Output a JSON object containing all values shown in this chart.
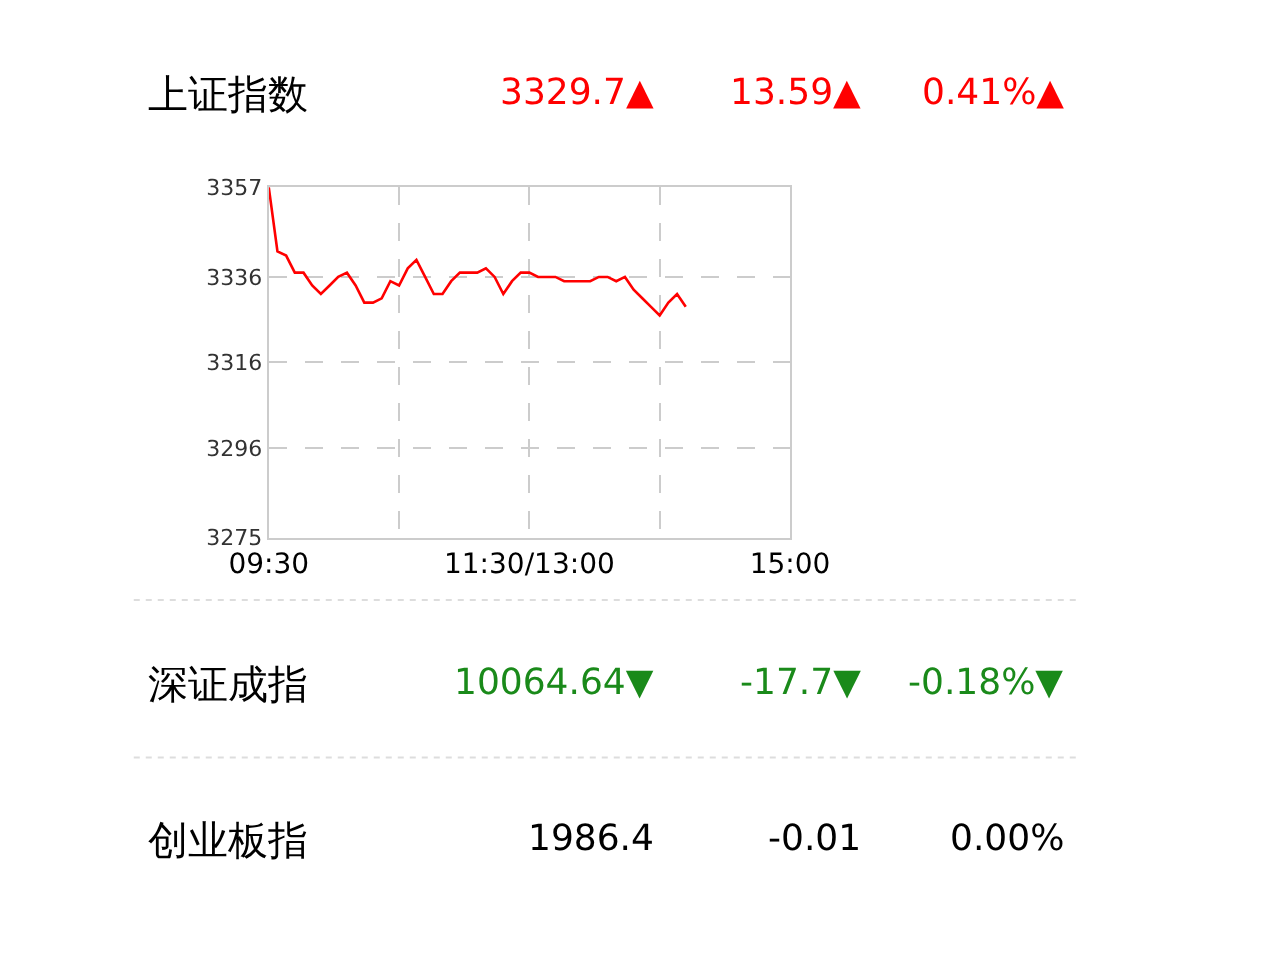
{
  "chart_data": [
    {
      "type": "line",
      "color": "#ff0000",
      "categories": [
        "09:30",
        null,
        null,
        null,
        null,
        null,
        null,
        null,
        null,
        null,
        null,
        null,
        null,
        null,
        null,
        null,
        null,
        null,
        null,
        null,
        null,
        null,
        null,
        null,
        null,
        null,
        null,
        null,
        null,
        null,
        "11:30/13:00",
        null,
        null,
        null,
        null,
        null,
        null,
        null,
        null,
        null,
        null,
        null,
        null,
        null,
        null,
        null,
        null,
        null,
        null,
        null,
        null,
        null,
        null,
        null,
        null,
        null,
        null,
        null,
        null,
        null,
        "15:00"
      ],
      "values": [
        3357,
        3342,
        3341,
        3337,
        3337,
        3334,
        3332,
        3334,
        3336,
        3337,
        3334,
        3330,
        3330,
        3331,
        3335,
        3334,
        3338,
        3340,
        3336,
        3332,
        3332,
        3335,
        3337,
        3337,
        3337,
        3338,
        3336,
        3332,
        3335,
        3337,
        3337,
        3336,
        3336,
        3336,
        3335,
        3335,
        3335,
        3335,
        3336,
        3336,
        3335,
        3336,
        3333,
        3331,
        3329,
        3327,
        3330,
        3332,
        3329,
        null,
        null,
        null,
        null,
        null,
        null,
        null,
        null,
        null,
        null,
        null,
        null
      ],
      "ylim": [
        3275,
        3357
      ],
      "yticks": [
        3275,
        3296,
        3316,
        3336,
        3357
      ],
      "grid": true,
      "legend": false,
      "line_style": "solid",
      "marker": "none"
    },
    {
      "type": "other",
      "annotations": [
        "上证指数",
        "3329.7▲",
        "13.59▲",
        "0.41%▲",
        "深证成指",
        "10064.64▼",
        "-17.7▼",
        "-0.18%▼",
        "创业板指",
        "1986.4",
        "-0.01",
        "0.00%"
      ],
      "colors": [
        "#000000",
        "#ff0000",
        "#ff0000",
        "#ff0000",
        "#000000",
        "#1a8a1a",
        "#1a8a1a",
        "#1a8a1a",
        "#000000",
        "#000000",
        "#000000",
        "#000000"
      ]
    }
  ]
}
